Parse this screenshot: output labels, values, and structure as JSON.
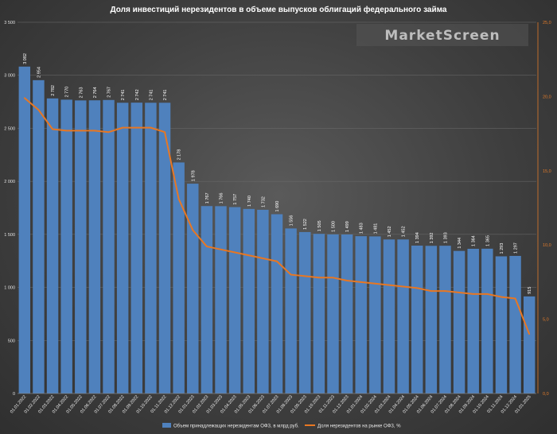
{
  "watermark": "MarketScreen",
  "colors": {
    "bars": "#4f81bd",
    "line": "#e87722",
    "grid": "#6e6e6e",
    "axis_right": "#e07a2a"
  },
  "chart_data": {
    "type": "bar",
    "title": "Доля инвестиций нерезидентов в объеме выпусков облигаций федерального займа",
    "categories": [
      "01.01.2022",
      "01.02.2022",
      "01.03.2022",
      "01.04.2022",
      "01.05.2022",
      "01.06.2022",
      "01.07.2022",
      "01.08.2022",
      "01.09.2022",
      "01.10.2022",
      "01.11.2022",
      "01.12.2022",
      "01.01.2023",
      "01.02.2023",
      "01.03.2023",
      "01.04.2023",
      "01.05.2023",
      "01.06.2023",
      "01.07.2023",
      "01.08.2023",
      "01.09.2023",
      "01.10.2023",
      "01.11.2023",
      "01.12.2023",
      "01.01.2024",
      "01.02.2024",
      "01.03.2024",
      "01.04.2024",
      "01.05.2024",
      "01.06.2024",
      "01.07.2024",
      "01.08.2024",
      "01.09.2024",
      "01.10.2024",
      "01.11.2024",
      "01.12.2024",
      "01.01.2025"
    ],
    "value_labels": [
      "3 082",
      "2 954",
      "2 782",
      "2 770",
      "2 763",
      "2 764",
      "2 767",
      "2 741",
      "2 742",
      "2 741",
      "2 741",
      "2 178",
      "1 978",
      "1 767",
      "1 766",
      "1 757",
      "1 740",
      "1 732",
      "1 690",
      "1 556",
      "1 522",
      "1 505",
      "1 500",
      "1 499",
      "1 483",
      "1 481",
      "1 452",
      "1 452",
      "1 394",
      "1 392",
      "1 393",
      "1 344",
      "1 364",
      "1 365",
      "1 293",
      "1 297",
      "915"
    ],
    "series": [
      {
        "name": "Объем принадлежащих нерезидентам ОФЗ, в млрд руб.",
        "type": "bar",
        "axis": "left",
        "values": [
          3082,
          2954,
          2782,
          2770,
          2763,
          2764,
          2767,
          2741,
          2742,
          2741,
          2741,
          2178,
          1978,
          1767,
          1766,
          1757,
          1740,
          1732,
          1690,
          1556,
          1522,
          1505,
          1500,
          1499,
          1483,
          1481,
          1452,
          1452,
          1394,
          1392,
          1393,
          1344,
          1364,
          1365,
          1293,
          1297,
          915
        ]
      },
      {
        "name": "Доля нерезидентов на рынке ОФЗ, %",
        "type": "line",
        "axis": "right",
        "values": [
          19.9,
          19.1,
          17.8,
          17.7,
          17.7,
          17.7,
          17.6,
          17.9,
          17.9,
          17.9,
          17.6,
          13.1,
          11.0,
          9.9,
          9.7,
          9.5,
          9.3,
          9.1,
          8.9,
          8.0,
          7.9,
          7.8,
          7.8,
          7.6,
          7.5,
          7.4,
          7.3,
          7.2,
          7.1,
          6.9,
          6.9,
          6.8,
          6.7,
          6.7,
          6.5,
          6.4,
          4.0
        ]
      }
    ],
    "y_left": {
      "ylim": [
        0,
        3500
      ],
      "ticks": [
        "0",
        "500",
        "1 000",
        "1 500",
        "2 000",
        "2 500",
        "3 000",
        "3 500"
      ]
    },
    "y_right": {
      "ylim": [
        0,
        25
      ],
      "ticks": [
        "0,0",
        "5,0",
        "10,0",
        "15,0",
        "20,0",
        "25,0"
      ]
    },
    "grid": true,
    "legend_position": "bottom"
  }
}
